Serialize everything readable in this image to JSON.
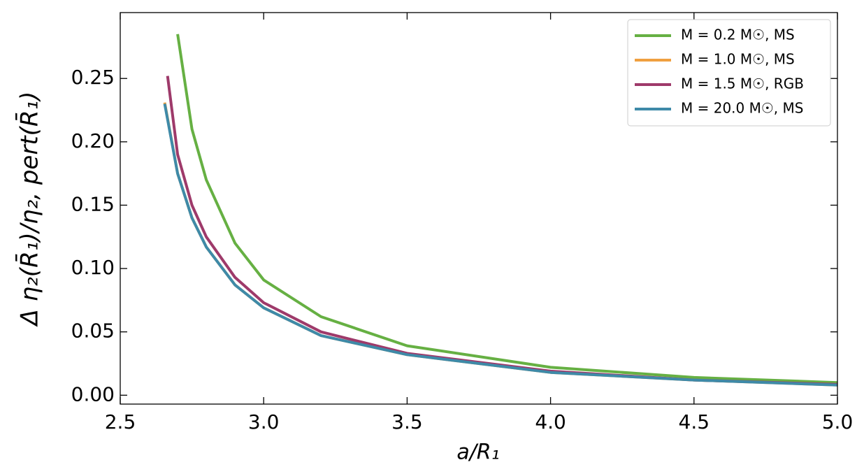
{
  "chart_data": {
    "type": "line",
    "xlabel": "a/R₁",
    "ylabel": "Δ η₂(R̄₁)/η₂, pert(R̄₁)",
    "xlim": [
      2.5,
      5.0
    ],
    "ylim": [
      -0.007,
      0.302
    ],
    "xticks": [
      2.5,
      {
        "value": 3.0,
        "label": "3.0"
      },
      3.5,
      {
        "value": 4.0,
        "label": "4.0"
      },
      4.5,
      {
        "value": 5.0,
        "label": "5.0"
      }
    ],
    "yticks": [
      {
        "value": 0,
        "label": "0.00"
      },
      0.05,
      {
        "value": 0.1,
        "label": "0.10"
      },
      0.15,
      {
        "value": 0.2,
        "label": "0.20"
      },
      0.25
    ],
    "legend": "upper right",
    "series": [
      {
        "name": "M = 0.2 M☉, MS",
        "color": "#66b043",
        "x": [
          2.7,
          2.75,
          2.8,
          2.9,
          3.0,
          3.2,
          3.5,
          4.0,
          4.5,
          5.0
        ],
        "values": [
          0.285,
          0.21,
          0.17,
          0.12,
          0.091,
          0.062,
          0.039,
          0.022,
          0.014,
          0.01
        ]
      },
      {
        "name": "M = 1.0 M☉, MS",
        "color": "#f0a040",
        "x": [
          2.655,
          2.7,
          2.75,
          2.8,
          2.9,
          3.0,
          3.2,
          3.5,
          4.0,
          4.5,
          5.0
        ],
        "values": [
          0.231,
          0.175,
          0.14,
          0.117,
          0.087,
          0.069,
          0.047,
          0.032,
          0.018,
          0.012,
          0.008
        ]
      },
      {
        "name": "M = 1.5 M☉, RGB",
        "color": "#9e3a6a",
        "x": [
          2.665,
          2.7,
          2.75,
          2.8,
          2.9,
          3.0,
          3.2,
          3.5,
          4.0,
          4.5,
          5.0
        ],
        "values": [
          0.252,
          0.19,
          0.15,
          0.125,
          0.093,
          0.073,
          0.05,
          0.033,
          0.019,
          0.012,
          0.0085
        ]
      },
      {
        "name": "M = 20.0 M☉, MS",
        "color": "#3e8aa8",
        "x": [
          2.655,
          2.7,
          2.75,
          2.8,
          2.9,
          3.0,
          3.2,
          3.5,
          4.0,
          4.5,
          5.0
        ],
        "values": [
          0.23,
          0.175,
          0.14,
          0.117,
          0.087,
          0.069,
          0.047,
          0.032,
          0.018,
          0.012,
          0.008
        ]
      }
    ]
  }
}
